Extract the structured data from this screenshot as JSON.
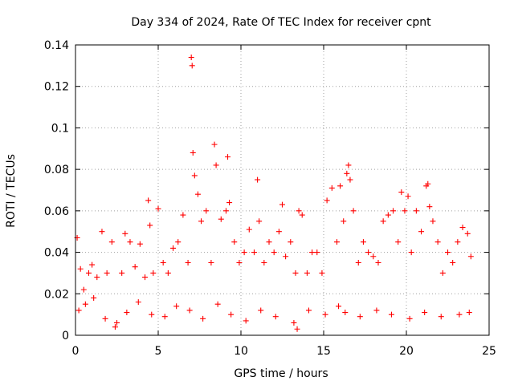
{
  "chart_data": {
    "type": "scatter",
    "title": "Day 334 of 2024, Rate Of TEC Index for receiver cpnt",
    "xlabel": "GPS time / hours",
    "ylabel": "ROTI / TECUs",
    "xlim": [
      0,
      25
    ],
    "ylim": [
      0,
      0.14
    ],
    "x_ticks": [
      "0",
      "5",
      "10",
      "15",
      "20",
      "25"
    ],
    "y_ticks": [
      "0",
      "0.02",
      "0.04",
      "0.06",
      "0.08",
      "0.1",
      "0.12",
      "0.14"
    ],
    "grid": true,
    "marker": "+",
    "color": "#ff0000",
    "series": [
      {
        "name": "ROTI",
        "x": [
          0.1,
          0.3,
          0.5,
          0.8,
          1.0,
          1.3,
          1.6,
          1.9,
          2.2,
          2.5,
          2.8,
          3.0,
          3.3,
          3.6,
          3.9,
          4.2,
          4.4,
          4.5,
          4.7,
          5.0,
          5.3,
          5.6,
          5.9,
          6.2,
          6.5,
          6.8,
          7.0,
          7.05,
          7.1,
          7.2,
          7.4,
          7.6,
          7.9,
          8.2,
          8.4,
          8.5,
          8.8,
          9.1,
          9.2,
          9.3,
          9.6,
          9.9,
          10.2,
          10.5,
          10.8,
          11.0,
          11.1,
          11.4,
          11.7,
          12.0,
          12.3,
          12.5,
          12.7,
          13.0,
          13.3,
          13.5,
          13.7,
          14.0,
          14.3,
          14.6,
          14.9,
          15.2,
          15.5,
          15.8,
          16.0,
          16.2,
          16.4,
          16.5,
          16.6,
          16.8,
          17.1,
          17.4,
          17.7,
          18.0,
          18.3,
          18.6,
          18.9,
          19.2,
          19.5,
          19.7,
          19.9,
          20.1,
          20.3,
          20.6,
          20.9,
          21.2,
          21.3,
          21.4,
          21.6,
          21.9,
          22.2,
          22.5,
          22.8,
          23.1,
          23.4,
          23.7,
          23.9,
          0.2,
          0.6,
          1.1,
          1.8,
          2.4,
          3.1,
          3.8,
          4.6,
          5.4,
          6.1,
          6.9,
          7.7,
          8.6,
          9.4,
          10.3,
          11.2,
          12.1,
          13.2,
          13.4,
          14.1,
          15.1,
          15.9,
          16.3,
          17.2,
          18.2,
          19.1,
          20.2,
          21.1,
          22.1,
          23.2,
          23.8
        ],
        "y": [
          0.047,
          0.032,
          0.022,
          0.03,
          0.034,
          0.028,
          0.05,
          0.03,
          0.045,
          0.006,
          0.03,
          0.049,
          0.045,
          0.033,
          0.044,
          0.028,
          0.065,
          0.053,
          0.03,
          0.061,
          0.035,
          0.03,
          0.042,
          0.045,
          0.058,
          0.035,
          0.134,
          0.13,
          0.088,
          0.077,
          0.068,
          0.055,
          0.06,
          0.035,
          0.092,
          0.082,
          0.056,
          0.06,
          0.086,
          0.064,
          0.045,
          0.035,
          0.04,
          0.051,
          0.04,
          0.075,
          0.055,
          0.035,
          0.045,
          0.04,
          0.05,
          0.063,
          0.038,
          0.045,
          0.03,
          0.06,
          0.058,
          0.03,
          0.04,
          0.04,
          0.03,
          0.065,
          0.071,
          0.045,
          0.072,
          0.055,
          0.078,
          0.082,
          0.075,
          0.06,
          0.035,
          0.045,
          0.04,
          0.038,
          0.035,
          0.055,
          0.058,
          0.06,
          0.045,
          0.069,
          0.06,
          0.067,
          0.04,
          0.06,
          0.05,
          0.072,
          0.073,
          0.062,
          0.055,
          0.045,
          0.03,
          0.04,
          0.035,
          0.045,
          0.052,
          0.049,
          0.038,
          0.012,
          0.015,
          0.018,
          0.008,
          0.004,
          0.011,
          0.016,
          0.01,
          0.009,
          0.014,
          0.012,
          0.008,
          0.015,
          0.01,
          0.007,
          0.012,
          0.009,
          0.006,
          0.003,
          0.012,
          0.01,
          0.014,
          0.011,
          0.009,
          0.012,
          0.01,
          0.008,
          0.011,
          0.009,
          0.01,
          0.011
        ]
      }
    ]
  }
}
